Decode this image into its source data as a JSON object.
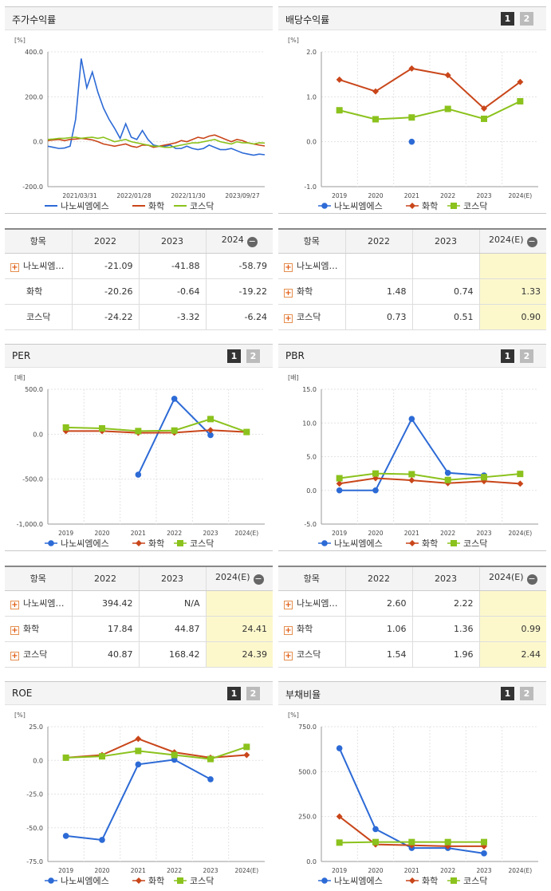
{
  "colors": {
    "nano": "#2c6ad6",
    "chem": "#c9461a",
    "kosdaq": "#8bc21d",
    "axis": "#9a9a9a",
    "grid": "#e3e3e3",
    "plus_icon": "#e05a10",
    "highlight": "#fdf8cc"
  },
  "pager": {
    "p1": "1",
    "p2": "2"
  },
  "legend": {
    "nano": "나노씨엠에스",
    "chem": "화학",
    "kosdaq": "코스닥"
  },
  "stock": {
    "title": "주가수익률",
    "chart_data": {
      "type": "line",
      "unit": "[%]",
      "ylim": [
        -200,
        400
      ],
      "yticks": [
        "400.0",
        "200.0",
        "0.0",
        "-200.0"
      ],
      "xticks": [
        "2021/03/31",
        "2022/01/28",
        "2022/11/30",
        "2023/09/27"
      ],
      "series": [
        {
          "name": "나노씨엠에스",
          "values": [
            -20,
            -25,
            -30,
            -28,
            -20,
            100,
            370,
            240,
            310,
            220,
            150,
            100,
            60,
            15,
            80,
            20,
            10,
            50,
            10,
            -15,
            -20,
            -20,
            -15,
            -30,
            -30,
            -20,
            -30,
            -35,
            -30,
            -15,
            -25,
            -35,
            -35,
            -30,
            -40,
            -50,
            -55,
            -60,
            -55,
            -58
          ]
        },
        {
          "name": "화학",
          "values": [
            5,
            8,
            10,
            5,
            10,
            12,
            15,
            12,
            8,
            0,
            -10,
            -15,
            -20,
            -15,
            -10,
            -20,
            -25,
            -15,
            -15,
            -25,
            -20,
            -15,
            -10,
            -5,
            5,
            0,
            10,
            20,
            15,
            25,
            30,
            20,
            10,
            0,
            10,
            5,
            -5,
            -10,
            -15,
            -19
          ]
        },
        {
          "name": "코스닥",
          "values": [
            10,
            12,
            15,
            15,
            18,
            20,
            15,
            18,
            20,
            15,
            20,
            10,
            0,
            5,
            10,
            0,
            -5,
            -10,
            -15,
            -20,
            -20,
            -25,
            -25,
            -20,
            -15,
            -10,
            -5,
            -5,
            0,
            5,
            10,
            0,
            -5,
            -10,
            0,
            -5,
            -5,
            -10,
            -5,
            -6
          ]
        }
      ]
    },
    "table": {
      "headers": [
        "항목",
        "2022",
        "2023",
        "2024"
      ],
      "rows": [
        {
          "name": "나노씨엠…",
          "plus": true,
          "v": [
            "-21.09",
            "-41.88",
            "-58.79"
          ]
        },
        {
          "name": "화학",
          "plus": false,
          "v": [
            "-20.26",
            "-0.64",
            "-19.22"
          ]
        },
        {
          "name": "코스닥",
          "plus": false,
          "v": [
            "-24.22",
            "-3.32",
            "-6.24"
          ]
        }
      ]
    }
  },
  "dividend": {
    "title": "배당수익률",
    "chart_data": {
      "type": "line",
      "unit": "[%]",
      "ylim": [
        -1,
        2
      ],
      "yticks": [
        "2.0",
        "1.0",
        "0.0",
        "-1.0"
      ],
      "xticks": [
        "2019",
        "2020",
        "2021",
        "2022",
        "2023",
        "2024(E)"
      ],
      "series": [
        {
          "name": "나노씨엠에스",
          "values": [
            null,
            null,
            0,
            null,
            null,
            null
          ]
        },
        {
          "name": "화학",
          "values": [
            1.38,
            1.12,
            1.63,
            1.48,
            0.74,
            1.33
          ]
        },
        {
          "name": "코스닥",
          "values": [
            0.7,
            0.5,
            0.54,
            0.73,
            0.51,
            0.9
          ]
        }
      ]
    },
    "table": {
      "headers": [
        "항목",
        "2022",
        "2023",
        "2024(E)"
      ],
      "rows": [
        {
          "name": "나노씨엠…",
          "plus": true,
          "v": [
            "",
            "",
            ""
          ]
        },
        {
          "name": "화학",
          "plus": true,
          "v": [
            "1.48",
            "0.74",
            "1.33"
          ]
        },
        {
          "name": "코스닥",
          "plus": true,
          "v": [
            "0.73",
            "0.51",
            "0.90"
          ]
        }
      ]
    }
  },
  "per": {
    "title": "PER",
    "chart_data": {
      "type": "line",
      "unit": "[배]",
      "ylim": [
        -1000,
        500
      ],
      "yticks": [
        "500.0",
        "0.0",
        "-500.0",
        "-1,000.0"
      ],
      "xticks": [
        "2019",
        "2020",
        "2021",
        "2022",
        "2023",
        "2024(E)"
      ],
      "series": [
        {
          "name": "나노씨엠에스",
          "values": [
            null,
            null,
            -450,
            394.42,
            -10,
            null
          ]
        },
        {
          "name": "화학",
          "values": [
            35,
            35,
            15,
            17.84,
            44.87,
            24.41
          ]
        },
        {
          "name": "코스닥",
          "values": [
            75,
            65,
            35,
            40.87,
            168.42,
            24.39
          ]
        }
      ]
    },
    "table": {
      "headers": [
        "항목",
        "2022",
        "2023",
        "2024(E)"
      ],
      "rows": [
        {
          "name": "나노씨엠…",
          "plus": true,
          "v": [
            "394.42",
            "N/A",
            ""
          ]
        },
        {
          "name": "화학",
          "plus": true,
          "v": [
            "17.84",
            "44.87",
            "24.41"
          ]
        },
        {
          "name": "코스닥",
          "plus": true,
          "v": [
            "40.87",
            "168.42",
            "24.39"
          ]
        }
      ]
    }
  },
  "pbr": {
    "title": "PBR",
    "chart_data": {
      "type": "line",
      "unit": "[배]",
      "ylim": [
        -5,
        15
      ],
      "yticks": [
        "15.0",
        "10.0",
        "5.0",
        "0.0",
        "-5.0"
      ],
      "xticks": [
        "2019",
        "2020",
        "2021",
        "2022",
        "2023",
        "2024(E)"
      ],
      "series": [
        {
          "name": "나노씨엠에스",
          "values": [
            0,
            0,
            10.6,
            2.6,
            2.22,
            null
          ]
        },
        {
          "name": "화학",
          "values": [
            1.0,
            1.8,
            1.5,
            1.06,
            1.36,
            0.99
          ]
        },
        {
          "name": "코스닥",
          "values": [
            1.8,
            2.5,
            2.4,
            1.54,
            1.96,
            2.44
          ]
        }
      ]
    },
    "table": {
      "headers": [
        "항목",
        "2022",
        "2023",
        "2024(E)"
      ],
      "rows": [
        {
          "name": "나노씨엠…",
          "plus": true,
          "v": [
            "2.60",
            "2.22",
            ""
          ]
        },
        {
          "name": "화학",
          "plus": true,
          "v": [
            "1.06",
            "1.36",
            "0.99"
          ]
        },
        {
          "name": "코스닥",
          "plus": true,
          "v": [
            "1.54",
            "1.96",
            "2.44"
          ]
        }
      ]
    }
  },
  "roe": {
    "title": "ROE",
    "chart_data": {
      "type": "line",
      "unit": "[%]",
      "ylim": [
        -75,
        25
      ],
      "yticks": [
        "25.0",
        "0.0",
        "-25.0",
        "-50.0",
        "-75.0"
      ],
      "xticks": [
        "2019",
        "2020",
        "2021",
        "2022",
        "2023",
        "2024(E)"
      ],
      "series": [
        {
          "name": "나노씨엠에스",
          "values": [
            -56,
            -59,
            -3,
            0.5,
            -14,
            null
          ]
        },
        {
          "name": "화학",
          "values": [
            2,
            4,
            16,
            6,
            2,
            4
          ]
        },
        {
          "name": "코스닥",
          "values": [
            2,
            3,
            7,
            4,
            1,
            10
          ]
        }
      ]
    }
  },
  "debt": {
    "title": "부채비율",
    "chart_data": {
      "type": "line",
      "unit": "[%]",
      "ylim": [
        0,
        750
      ],
      "yticks": [
        "750.0",
        "500.0",
        "250.0",
        "0.0"
      ],
      "xticks": [
        "2019",
        "2020",
        "2021",
        "2022",
        "2023",
        "2024(E)"
      ],
      "series": [
        {
          "name": "나노씨엠에스",
          "values": [
            630,
            180,
            75,
            75,
            45,
            null
          ]
        },
        {
          "name": "화학",
          "values": [
            250,
            95,
            90,
            85,
            85,
            null
          ]
        },
        {
          "name": "코스닥",
          "values": [
            105,
            108,
            108,
            108,
            108,
            null
          ]
        }
      ]
    }
  }
}
